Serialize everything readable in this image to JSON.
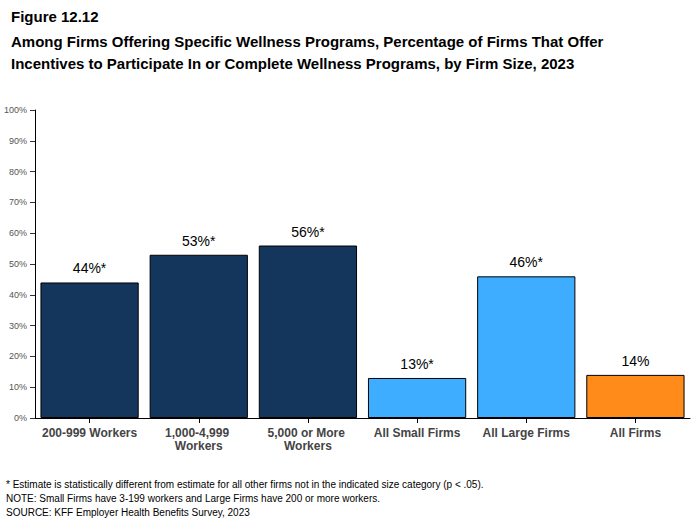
{
  "chart_data": {
    "type": "bar",
    "title": "Figure 12.12",
    "subtitle": "Among Firms Offering Specific Wellness Programs, Percentage of Firms That Offer Incentives to Participate In or Complete Wellness Programs, by Firm Size, 2023",
    "categories": [
      "200-999 Workers",
      "1,000-4,999 Workers",
      "5,000 or More Workers",
      "All Small Firms",
      "All Large Firms",
      "All Firms"
    ],
    "values": [
      44,
      53,
      56,
      13,
      46,
      14
    ],
    "value_labels": [
      "44%*",
      "53%*",
      "56%*",
      "13%*",
      "46%*",
      "14%"
    ],
    "colors": [
      "#14365d",
      "#14365d",
      "#14365d",
      "#3eadff",
      "#3eadff",
      "#ff8c1a"
    ],
    "ylim": [
      0,
      100
    ],
    "yticks": [
      {
        "value": 0,
        "label": "0%"
      },
      {
        "value": 10,
        "label": "10%"
      },
      {
        "value": 20,
        "label": "20%"
      },
      {
        "value": 30,
        "label": "30%"
      },
      {
        "value": 40,
        "label": "40%"
      },
      {
        "value": 50,
        "label": "50%"
      },
      {
        "value": 60,
        "label": "60%"
      },
      {
        "value": 70,
        "label": "70%"
      },
      {
        "value": 80,
        "label": "80%"
      },
      {
        "value": 90,
        "label": "90%"
      },
      {
        "value": 100,
        "label": "100%"
      }
    ],
    "grid": false,
    "data_labels": true,
    "annotations": [
      "* Estimate is statistically different from estimate for all other firms not in the indicated size category (p < .05).",
      "NOTE: Small Firms have 3-199 workers and Large Firms have 200 or more workers.",
      "SOURCE: KFF Employer Health Benefits Survey, 2023"
    ]
  }
}
